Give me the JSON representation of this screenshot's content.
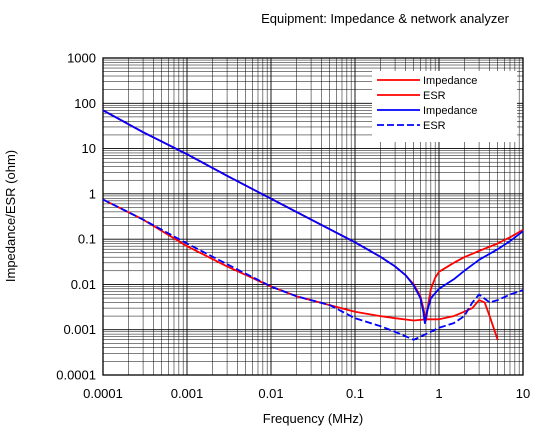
{
  "chart_data": {
    "type": "line",
    "title": "Equipment: Impedance & network analyzer",
    "xlabel": "Frequency (MHz)",
    "ylabel": "Impedance/ESR (ohm)",
    "x_scale": "log",
    "y_scale": "log",
    "xlim": [
      0.0001,
      10
    ],
    "ylim": [
      0.0001,
      1000
    ],
    "x_ticks": [
      "0.0001",
      "0.001",
      "0.01",
      "0.1",
      "1",
      "10"
    ],
    "y_ticks": [
      "0.0001",
      "0.001",
      "0.01",
      "0.1",
      "1",
      "10",
      "100",
      "1000"
    ],
    "grid": true,
    "legend_position": "top-right",
    "series": [
      {
        "name": "Impedance",
        "color": "#ff0000",
        "dash": "solid",
        "points": [
          [
            0.0001,
            70
          ],
          [
            0.0003,
            23
          ],
          [
            0.001,
            7.5
          ],
          [
            0.003,
            2.5
          ],
          [
            0.01,
            0.78
          ],
          [
            0.03,
            0.27
          ],
          [
            0.1,
            0.085
          ],
          [
            0.2,
            0.041
          ],
          [
            0.3,
            0.025
          ],
          [
            0.4,
            0.016
          ],
          [
            0.5,
            0.01
          ],
          [
            0.6,
            0.0055
          ],
          [
            0.65,
            0.003
          ],
          [
            0.7,
            0.0016
          ],
          [
            0.75,
            0.004
          ],
          [
            0.8,
            0.008
          ],
          [
            0.9,
            0.014
          ],
          [
            1,
            0.019
          ],
          [
            1.5,
            0.03
          ],
          [
            2,
            0.04
          ],
          [
            3,
            0.055
          ],
          [
            5,
            0.08
          ],
          [
            7,
            0.11
          ],
          [
            10,
            0.16
          ]
        ]
      },
      {
        "name": "ESR",
        "color": "#ff0000",
        "dash": "solid",
        "points": [
          [
            0.0001,
            0.75
          ],
          [
            0.0003,
            0.27
          ],
          [
            0.001,
            0.07
          ],
          [
            0.003,
            0.025
          ],
          [
            0.01,
            0.009
          ],
          [
            0.02,
            0.0055
          ],
          [
            0.05,
            0.0035
          ],
          [
            0.1,
            0.0025
          ],
          [
            0.2,
            0.002
          ],
          [
            0.3,
            0.0018
          ],
          [
            0.5,
            0.0016
          ],
          [
            0.7,
            0.0017
          ],
          [
            1,
            0.0017
          ],
          [
            1.5,
            0.002
          ],
          [
            2,
            0.0025
          ],
          [
            2.5,
            0.003
          ],
          [
            3,
            0.0045
          ],
          [
            3.5,
            0.004
          ],
          [
            4,
            0.002
          ],
          [
            5,
            0.0006
          ]
        ]
      },
      {
        "name": "Impedance",
        "color": "#0000ff",
        "dash": "solid",
        "points": [
          [
            0.0001,
            70
          ],
          [
            0.0003,
            23
          ],
          [
            0.001,
            7.5
          ],
          [
            0.003,
            2.5
          ],
          [
            0.01,
            0.78
          ],
          [
            0.03,
            0.27
          ],
          [
            0.1,
            0.085
          ],
          [
            0.2,
            0.041
          ],
          [
            0.3,
            0.025
          ],
          [
            0.4,
            0.016
          ],
          [
            0.5,
            0.0095
          ],
          [
            0.6,
            0.005
          ],
          [
            0.65,
            0.0025
          ],
          [
            0.68,
            0.0014
          ],
          [
            0.72,
            0.0025
          ],
          [
            0.8,
            0.005
          ],
          [
            1,
            0.008
          ],
          [
            1.5,
            0.013
          ],
          [
            2,
            0.02
          ],
          [
            3,
            0.035
          ],
          [
            5,
            0.06
          ],
          [
            7,
            0.09
          ],
          [
            10,
            0.15
          ]
        ]
      },
      {
        "name": "ESR",
        "color": "#0000ff",
        "dash": "dashed",
        "points": [
          [
            0.0001,
            0.75
          ],
          [
            0.0003,
            0.27
          ],
          [
            0.001,
            0.08
          ],
          [
            0.003,
            0.028
          ],
          [
            0.01,
            0.009
          ],
          [
            0.02,
            0.0055
          ],
          [
            0.05,
            0.0035
          ],
          [
            0.1,
            0.0018
          ],
          [
            0.2,
            0.0012
          ],
          [
            0.3,
            0.0009
          ],
          [
            0.5,
            0.0006
          ],
          [
            0.7,
            0.0008
          ],
          [
            1,
            0.0011
          ],
          [
            1.5,
            0.0014
          ],
          [
            2,
            0.002
          ],
          [
            2.5,
            0.004
          ],
          [
            3,
            0.006
          ],
          [
            4,
            0.004
          ],
          [
            5,
            0.0045
          ],
          [
            7,
            0.006
          ],
          [
            10,
            0.0075
          ]
        ]
      }
    ]
  }
}
